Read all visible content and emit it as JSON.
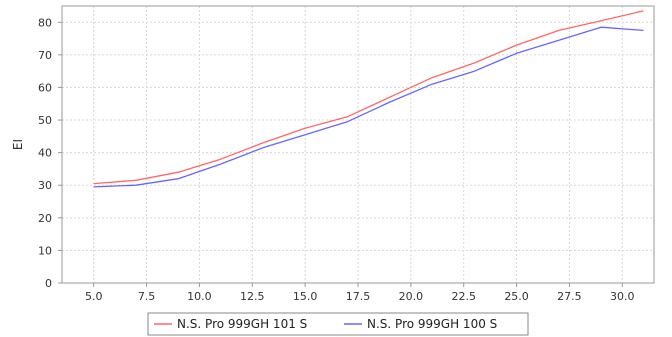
{
  "chart_data": {
    "type": "line",
    "title": "",
    "xlabel": "",
    "ylabel": "EI",
    "xlim": [
      3.5,
      31.5
    ],
    "ylim": [
      0,
      85
    ],
    "x_ticks": [
      "5.0",
      "7.5",
      "10.0",
      "12.5",
      "15.0",
      "17.5",
      "20.0",
      "22.5",
      "25.0",
      "27.5",
      "30.0"
    ],
    "y_ticks": [
      "0",
      "10",
      "20",
      "30",
      "40",
      "50",
      "60",
      "70",
      "80"
    ],
    "grid": true,
    "legend_position": "bottom",
    "series": [
      {
        "name": "N.S. Pro 999GH 101 S",
        "color": "#ff6666",
        "x": [
          5,
          7,
          9,
          11,
          13,
          15,
          17,
          19,
          21,
          23,
          25,
          27,
          29,
          31
        ],
        "y": [
          30.5,
          31.5,
          34,
          38,
          43,
          47.5,
          51,
          57,
          63,
          67.5,
          73,
          77.5,
          80.5,
          83.5
        ]
      },
      {
        "name": "N.S. Pro 999GH 100 S",
        "color": "#6666ff",
        "x": [
          5,
          7,
          9,
          11,
          13,
          15,
          17,
          19,
          21,
          23,
          25,
          27,
          29,
          31
        ],
        "y": [
          29.5,
          30,
          32,
          36.5,
          41.5,
          45.5,
          49.5,
          55.5,
          61,
          65,
          70.5,
          74.5,
          78.5,
          77.5
        ]
      }
    ]
  }
}
